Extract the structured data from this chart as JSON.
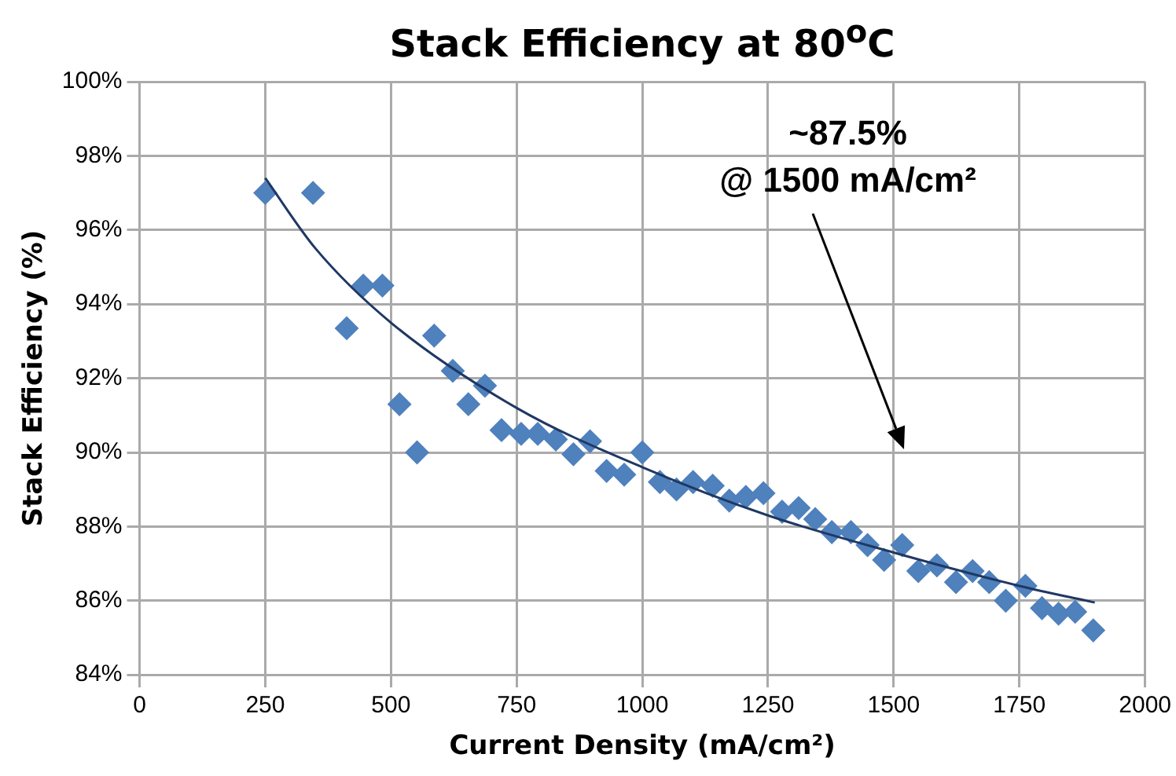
{
  "chart_data": {
    "type": "scatter",
    "title": "Stack Efficiency at 80$^{o}$C",
    "xlabel": "Current Density (mA/cm²)",
    "ylabel": "Stack Efficiency (%)",
    "xlim": [
      0,
      2000
    ],
    "xticks": [
      0,
      250,
      500,
      750,
      1000,
      1250,
      1500,
      1750,
      2000
    ],
    "ylim": [
      84,
      100
    ],
    "yticks": [
      {
        "value": 84,
        "label": "84%"
      },
      {
        "value": 86,
        "label": "86%"
      },
      {
        "value": 88,
        "label": "88%"
      },
      {
        "value": 90,
        "label": "90%"
      },
      {
        "value": 92,
        "label": "92%"
      },
      {
        "value": 94,
        "label": "94%"
      },
      {
        "value": 96,
        "label": "96%"
      },
      {
        "value": 98,
        "label": "98%"
      },
      {
        "value": 100,
        "label": "100%"
      }
    ],
    "grid": true,
    "legend": false,
    "marker": "diamond",
    "series": [
      {
        "color": "#4f81bd",
        "x": [
          250,
          345,
          412,
          445,
          483,
          517,
          552,
          586,
          623,
          654,
          687,
          720,
          759,
          792,
          828,
          863,
          896,
          929,
          964,
          1000,
          1035,
          1068,
          1101,
          1140,
          1173,
          1206,
          1241,
          1278,
          1311,
          1344,
          1377,
          1415,
          1448,
          1481,
          1517,
          1549,
          1586,
          1624,
          1657,
          1690,
          1723,
          1762,
          1795,
          1828,
          1861,
          1897
        ],
        "values": [
          97.0,
          97.0,
          93.35,
          94.5,
          94.5,
          91.3,
          90.0,
          93.15,
          92.2,
          91.3,
          91.8,
          90.6,
          90.5,
          90.5,
          90.35,
          89.95,
          90.3,
          89.5,
          89.4,
          90.0,
          89.2,
          89.0,
          89.2,
          89.1,
          88.7,
          88.8,
          88.9,
          88.4,
          88.5,
          88.2,
          87.85,
          87.85,
          87.5,
          87.1,
          87.5,
          86.8,
          86.95,
          86.5,
          86.8,
          86.5,
          86.0,
          86.4,
          85.8,
          85.65,
          85.7,
          85.2
        ]
      },
      {
        "type": "line",
        "color": "#1f3864",
        "marker": "none",
        "x": [
          250,
          350,
          500,
          750,
          1000,
          1250,
          1500,
          1750,
          1900
        ],
        "values": [
          97.4,
          95.5,
          93.5,
          91.2,
          89.6,
          88.3,
          87.3,
          86.4,
          85.95
        ]
      }
    ],
    "annotations": [
      "~87.5%\n@ 1500 mA/cm²"
    ]
  }
}
